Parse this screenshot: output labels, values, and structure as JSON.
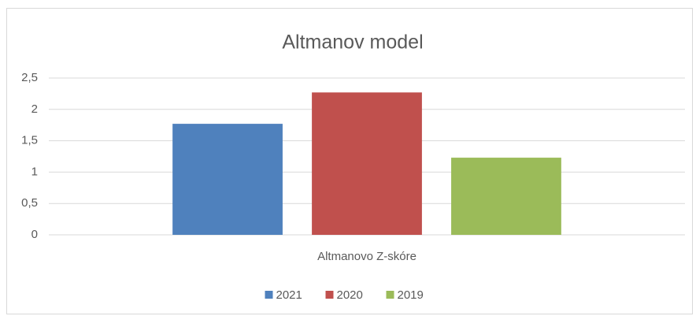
{
  "chart_data": {
    "type": "bar",
    "title": "Altmanov model",
    "categories": [
      "Altmanovo Z-skóre"
    ],
    "series": [
      {
        "name": "2021",
        "color": "#4f81bd",
        "values": [
          1.77
        ]
      },
      {
        "name": "2020",
        "color": "#c0504d",
        "values": [
          2.27
        ]
      },
      {
        "name": "2019",
        "color": "#9bbb59",
        "values": [
          1.23
        ]
      }
    ],
    "ylim": [
      0,
      2.5
    ],
    "yticks": [
      0,
      {
        "value": 0.5,
        "label": "0,5"
      },
      1,
      {
        "value": 1.5,
        "label": "1,5"
      },
      2,
      {
        "value": 2.5,
        "label": "2,5"
      }
    ],
    "grid": true,
    "legend": "bottom"
  }
}
